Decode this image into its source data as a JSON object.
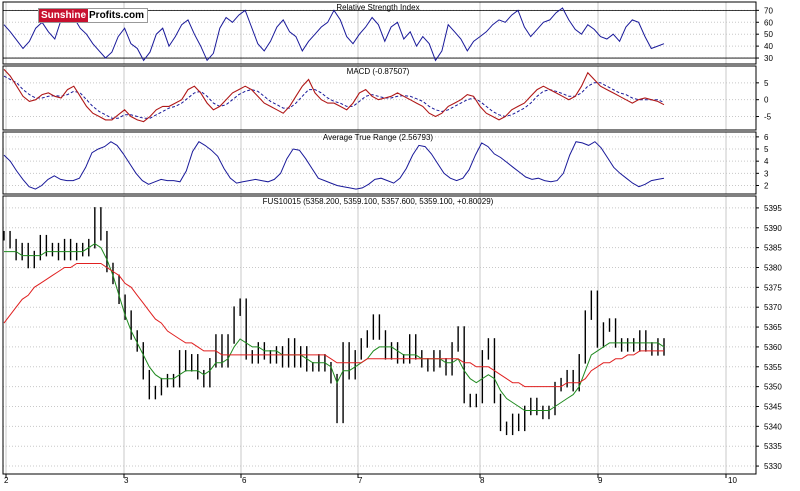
{
  "logo": {
    "part1": "Sunshine",
    "part2": "Profits.com"
  },
  "x_axis": {
    "tick_labels": [
      "2",
      "3",
      "6",
      "7",
      "8",
      "9",
      "10"
    ]
  },
  "colors": {
    "price": "#000000",
    "indicator": "#1a1a9a",
    "ma_short": "#1f8a1f",
    "ma_long": "#e02020",
    "grid": "#c8c8c8",
    "frame": "#000000"
  },
  "chart_data": [
    {
      "type": "line",
      "title": "Relative Strength Index",
      "y_ticks": [
        30,
        40,
        50,
        60,
        70
      ],
      "ylim": [
        25,
        77
      ],
      "reference_lines": [
        30,
        70
      ],
      "grid": true,
      "series": [
        {
          "values": [
            58,
            52,
            45,
            38,
            44,
            55,
            60,
            52,
            46,
            62,
            70,
            64,
            55,
            50,
            42,
            36,
            30,
            35,
            48,
            55,
            42,
            38,
            28,
            35,
            50,
            55,
            40,
            48,
            58,
            62,
            50,
            40,
            28,
            34,
            55,
            64,
            60,
            66,
            70,
            56,
            42,
            36,
            44,
            56,
            62,
            52,
            48,
            36,
            44,
            50,
            56,
            60,
            70,
            62,
            48,
            42,
            50,
            56,
            64,
            58,
            44,
            56,
            60,
            46,
            52,
            40,
            48,
            42,
            28,
            36,
            58,
            52,
            46,
            36,
            44,
            48,
            52,
            58,
            62,
            60,
            66,
            70,
            56,
            48,
            54,
            60,
            62,
            68,
            72,
            62,
            54,
            50,
            58,
            54,
            48,
            46,
            50,
            44,
            56,
            62,
            60,
            48,
            38,
            40,
            42
          ]
        }
      ]
    },
    {
      "type": "line",
      "title": "MACD (-0.87507)",
      "y_ticks": [
        -5,
        0,
        5
      ],
      "ylim": [
        -9,
        10
      ],
      "grid": true,
      "series": [
        {
          "values": [
            9,
            7,
            4,
            1,
            -0.5,
            0,
            1.5,
            2,
            1,
            0.5,
            3,
            4,
            1,
            -2,
            -4,
            -5,
            -6,
            -6,
            -4.5,
            -3,
            -5,
            -6,
            -6.5,
            -5,
            -3,
            -2,
            -2,
            -1,
            0,
            3,
            4,
            2,
            -1,
            -3,
            -2,
            0,
            2,
            3,
            4,
            3,
            1,
            -1,
            -2,
            -3,
            -4,
            -2,
            1,
            4,
            6,
            2,
            0,
            -1,
            -1,
            -2,
            -3,
            -1,
            2,
            3,
            1,
            0,
            0.5,
            1,
            2,
            1,
            0,
            -1,
            -2,
            -4,
            -5,
            -4,
            -2,
            -1,
            0,
            1.5,
            1,
            -2,
            -4,
            -5,
            -6,
            -5,
            -3,
            -2,
            -1,
            1,
            3,
            4,
            3,
            2,
            1,
            0,
            1,
            4,
            8,
            6,
            4,
            3,
            2,
            1,
            0,
            -1,
            0,
            0.5,
            0,
            -0.5,
            -1.5
          ]
        },
        {
          "values": [
            7,
            6,
            5,
            3,
            1.5,
            0.5,
            0.5,
            1,
            1.2,
            1,
            1.5,
            2.5,
            2,
            0,
            -2,
            -3.5,
            -4.5,
            -5.5,
            -5.5,
            -4.5,
            -4.5,
            -5,
            -5.5,
            -5.5,
            -4.5,
            -3.5,
            -2.5,
            -2,
            -1,
            0.5,
            2,
            2.5,
            1,
            -1,
            -2,
            -1.5,
            0,
            1.5,
            2.5,
            3,
            2.5,
            1,
            -0.5,
            -1.5,
            -2.5,
            -2.5,
            -1,
            1,
            3,
            3,
            2,
            0.5,
            -0.5,
            -1,
            -2,
            -2,
            -0.5,
            1,
            1.5,
            1,
            0.5,
            0.5,
            1,
            1.2,
            1,
            0.3,
            -0.5,
            -2,
            -3,
            -3.5,
            -3,
            -2,
            -1,
            0,
            0.5,
            -0.5,
            -2,
            -3.5,
            -4.5,
            -5,
            -4.5,
            -3.5,
            -2.5,
            -1,
            1,
            2.5,
            3,
            2.5,
            1.8,
            1,
            1,
            2,
            4,
            5,
            5,
            4,
            3,
            2,
            1.5,
            0.5,
            0,
            0,
            0,
            0,
            -0.8
          ]
        }
      ]
    },
    {
      "type": "line",
      "title": "Average True Range (2.56793)",
      "y_ticks": [
        2,
        3,
        4,
        5,
        6
      ],
      "ylim": [
        1.3,
        6.4
      ],
      "grid": true,
      "series": [
        {
          "values": [
            4.5,
            4,
            3.2,
            2.5,
            1.9,
            1.7,
            2,
            2.5,
            2.8,
            2.5,
            2.4,
            2.4,
            2.6,
            3.5,
            4.7,
            5.0,
            5.2,
            5.6,
            5.3,
            4.6,
            3.8,
            3.0,
            2.4,
            2.1,
            2.3,
            2.5,
            2.4,
            2.4,
            2.3,
            3.2,
            4.8,
            5.6,
            5.3,
            4.9,
            4.4,
            3.4,
            2.6,
            2.2,
            2.3,
            2.4,
            2.5,
            2.4,
            2.3,
            2.5,
            3.0,
            4.2,
            5.0,
            4.9,
            4.2,
            3.4,
            2.6,
            2.4,
            2.2,
            2.0,
            1.9,
            1.8,
            1.7,
            1.8,
            2.1,
            2.5,
            2.6,
            2.4,
            2.2,
            2.6,
            3.4,
            4.5,
            5.3,
            5.2,
            4.6,
            3.8,
            3.0,
            2.6,
            2.4,
            2.6,
            3.3,
            4.5,
            5.5,
            5.2,
            4.6,
            4.3,
            3.9,
            3.5,
            3.1,
            2.7,
            2.5,
            2.6,
            2.4,
            2.3,
            2.4,
            3.0,
            4.5,
            5.6,
            5.5,
            5.3,
            5.6,
            5.1,
            4.3,
            3.5,
            3.0,
            2.6,
            2.2,
            1.9,
            2.1,
            2.4,
            2.5,
            2.6
          ]
        }
      ]
    },
    {
      "type": "line",
      "title": "FUS10015 (5358.200, 5359.100, 5357.600, 5359.100, +0.80029)",
      "y_ticks": [
        5330,
        5335,
        5340,
        5345,
        5350,
        5355,
        5360,
        5365,
        5370,
        5375,
        5380,
        5385,
        5390,
        5395
      ],
      "ylim": [
        5328,
        5398
      ],
      "grid": true,
      "series": [
        {
          "values": [
            5388,
            5386,
            5383,
            5385,
            5381,
            5383,
            5387,
            5384,
            5385,
            5383,
            5386,
            5383,
            5385,
            5384,
            5386,
            5394,
            5388,
            5380,
            5377,
            5372,
            5368,
            5363,
            5360,
            5353,
            5348,
            5349,
            5351,
            5352,
            5351,
            5358,
            5355,
            5357,
            5353,
            5351,
            5356,
            5362,
            5356,
            5362,
            5369,
            5371,
            5358,
            5357,
            5360,
            5358,
            5357,
            5359,
            5356,
            5361,
            5356,
            5359,
            5355,
            5355,
            5357,
            5355,
            5352,
            5342,
            5360,
            5353,
            5358,
            5361,
            5363,
            5367,
            5363,
            5358,
            5360,
            5357,
            5357,
            5362,
            5358,
            5356,
            5355,
            5358,
            5356,
            5354,
            5360,
            5364,
            5347,
            5346,
            5347,
            5358,
            5361,
            5347,
            5340,
            5339,
            5342,
            5340,
            5344,
            5346,
            5344,
            5343,
            5344,
            5350,
            5351,
            5353,
            5350,
            5357,
            5368,
            5373,
            5361,
            5365,
            5366,
            5361,
            5360,
            5361,
            5360,
            5363,
            5360,
            5359,
            5361,
            5359
          ]
        },
        {
          "values": [
            5384,
            5384,
            5384,
            5383,
            5383,
            5383,
            5383,
            5384,
            5384,
            5384,
            5384,
            5384,
            5384,
            5384,
            5385,
            5386,
            5385,
            5382,
            5378,
            5373,
            5368,
            5364,
            5361,
            5358,
            5355,
            5353,
            5352,
            5352,
            5352,
            5353,
            5354,
            5354,
            5354,
            5353,
            5354,
            5356,
            5356,
            5357,
            5360,
            5362,
            5361,
            5360,
            5360,
            5359,
            5359,
            5359,
            5358,
            5358,
            5358,
            5358,
            5357,
            5356,
            5356,
            5356,
            5355,
            5351,
            5354,
            5354,
            5355,
            5356,
            5357,
            5359,
            5360,
            5360,
            5360,
            5359,
            5358,
            5358,
            5358,
            5357,
            5357,
            5357,
            5357,
            5356,
            5356,
            5357,
            5354,
            5352,
            5351,
            5352,
            5353,
            5352,
            5349,
            5347,
            5346,
            5345,
            5344,
            5344,
            5344,
            5344,
            5344,
            5345,
            5346,
            5347,
            5348,
            5350,
            5354,
            5358,
            5359,
            5360,
            5361,
            5361,
            5361,
            5361,
            5361,
            5361,
            5361,
            5361,
            5361,
            5360
          ]
        },
        {
          "values": [
            5366,
            5368,
            5370,
            5372,
            5373,
            5375,
            5376,
            5377,
            5378,
            5379,
            5380,
            5380,
            5381,
            5381,
            5381,
            5381,
            5381,
            5380,
            5379,
            5378,
            5376,
            5375,
            5373,
            5371,
            5369,
            5367,
            5366,
            5364,
            5363,
            5362,
            5361,
            5361,
            5360,
            5359,
            5359,
            5359,
            5358,
            5358,
            5358,
            5358,
            5358,
            5358,
            5358,
            5358,
            5358,
            5358,
            5358,
            5358,
            5358,
            5358,
            5358,
            5358,
            5358,
            5358,
            5357,
            5356,
            5356,
            5356,
            5356,
            5356,
            5357,
            5357,
            5357,
            5357,
            5357,
            5357,
            5357,
            5357,
            5357,
            5357,
            5357,
            5357,
            5357,
            5357,
            5357,
            5357,
            5356,
            5356,
            5355,
            5355,
            5355,
            5354,
            5353,
            5352,
            5351,
            5351,
            5350,
            5350,
            5350,
            5350,
            5350,
            5350,
            5350,
            5351,
            5351,
            5351,
            5352,
            5354,
            5355,
            5356,
            5356,
            5357,
            5357,
            5358,
            5358,
            5359,
            5359,
            5359,
            5359,
            5359
          ]
        }
      ]
    }
  ]
}
